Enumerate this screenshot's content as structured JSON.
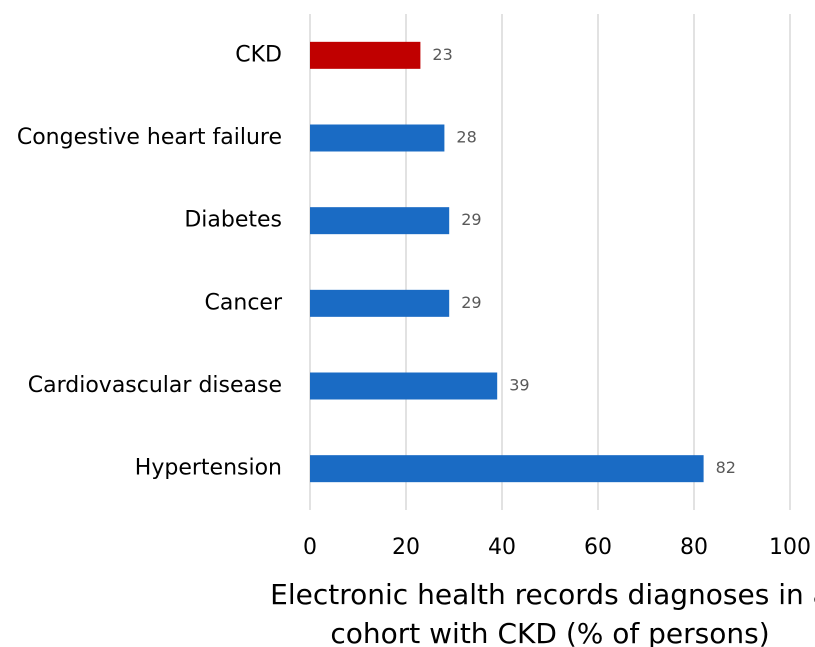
{
  "chart_data": {
    "type": "bar",
    "orientation": "horizontal",
    "categories": [
      "CKD",
      "Congestive heart failure",
      "Diabetes",
      "Cancer",
      "Cardiovascular disease",
      "Hypertension"
    ],
    "values": [
      23,
      28,
      29,
      29,
      39,
      82
    ],
    "colors": [
      "#c00000",
      "#1a6bc4",
      "#1a6bc4",
      "#1a6bc4",
      "#1a6bc4",
      "#1a6bc4"
    ],
    "xlim": [
      0,
      100
    ],
    "xticks": [
      0,
      20,
      40,
      60,
      80,
      100
    ],
    "grid": true,
    "xlabel": [
      "Electronic health records diagnoses in a",
      "cohort with CKD (% of persons)"
    ]
  }
}
